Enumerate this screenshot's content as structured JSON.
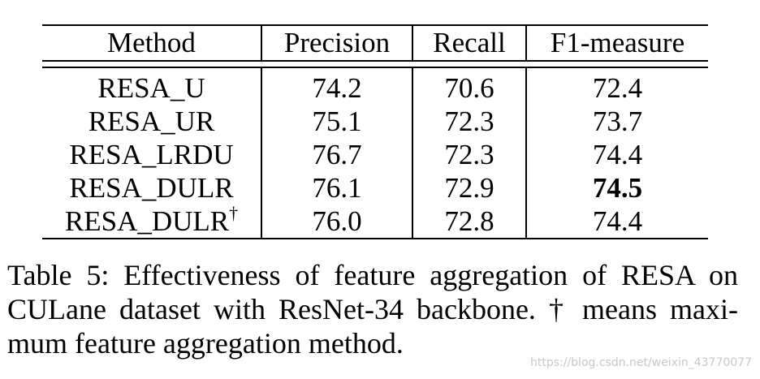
{
  "table": {
    "headers": [
      "Method",
      "Precision",
      "Recall",
      "F1-measure"
    ],
    "rows": [
      {
        "method": "RESA_U",
        "precision": "74.2",
        "recall": "70.6",
        "f1": "72.4"
      },
      {
        "method": "RESA_UR",
        "precision": "75.1",
        "recall": "72.3",
        "f1": "73.7"
      },
      {
        "method": "RESA_LRDU",
        "precision": "76.7",
        "recall": "72.3",
        "f1": "74.4"
      },
      {
        "method": "RESA_DULR",
        "precision": "76.1",
        "recall": "72.9",
        "f1": "74.5"
      },
      {
        "method": "RESA_DULR",
        "method_mark": "†",
        "precision": "76.0",
        "recall": "72.8",
        "f1": "74.4"
      }
    ],
    "bold_cell": "74.5"
  },
  "caption": {
    "lines": [
      "Table 5: Effectiveness of feature aggregation of RESA on",
      "CULane dataset with ResNet-34 backbone. † means maxi-",
      "mum feature aggregation method."
    ]
  },
  "watermark": "https://blog.csdn.net/weixin_43770077"
}
